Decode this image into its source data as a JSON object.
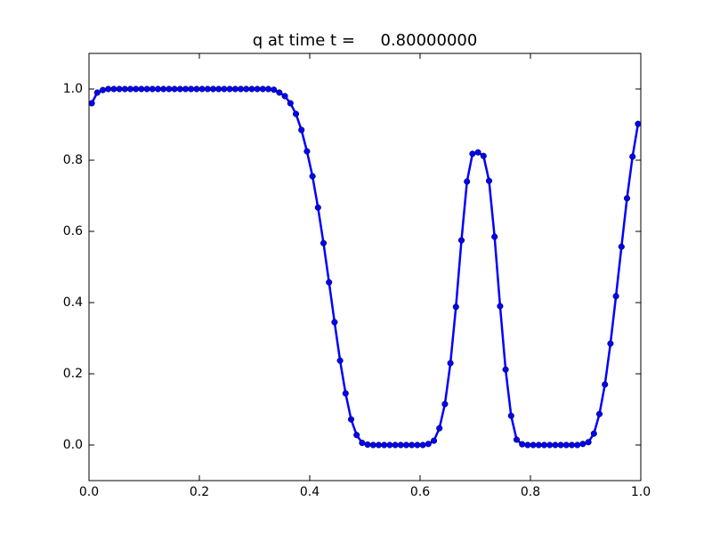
{
  "chart_data": {
    "type": "line",
    "title": "q at time t =     0.80000000",
    "x": [
      0.005,
      0.015,
      0.025,
      0.035,
      0.045,
      0.055,
      0.065,
      0.075,
      0.085,
      0.095,
      0.105,
      0.115,
      0.125,
      0.135,
      0.145,
      0.155,
      0.165,
      0.175,
      0.185,
      0.195,
      0.205,
      0.215,
      0.225,
      0.235,
      0.245,
      0.255,
      0.265,
      0.275,
      0.285,
      0.295,
      0.305,
      0.315,
      0.325,
      0.335,
      0.345,
      0.355,
      0.365,
      0.375,
      0.385,
      0.395,
      0.405,
      0.415,
      0.425,
      0.435,
      0.445,
      0.455,
      0.465,
      0.475,
      0.485,
      0.495,
      0.505,
      0.515,
      0.525,
      0.535,
      0.545,
      0.555,
      0.565,
      0.575,
      0.585,
      0.595,
      0.605,
      0.615,
      0.625,
      0.635,
      0.645,
      0.655,
      0.665,
      0.675,
      0.685,
      0.695,
      0.705,
      0.715,
      0.725,
      0.735,
      0.745,
      0.755,
      0.765,
      0.775,
      0.785,
      0.795,
      0.805,
      0.815,
      0.825,
      0.835,
      0.845,
      0.855,
      0.865,
      0.875,
      0.885,
      0.895,
      0.905,
      0.915,
      0.925,
      0.935,
      0.945,
      0.955,
      0.965,
      0.975,
      0.985,
      0.995
    ],
    "values": [
      0.96,
      0.99,
      0.997,
      1,
      1,
      1,
      1,
      1,
      1,
      1,
      1,
      1,
      1,
      1,
      1,
      1,
      1,
      1,
      1,
      1,
      1,
      1,
      1,
      1,
      1,
      1,
      1,
      1,
      1,
      1,
      1,
      1,
      1,
      0.998,
      0.99,
      0.98,
      0.96,
      0.93,
      0.885,
      0.825,
      0.755,
      0.667,
      0.567,
      0.457,
      0.345,
      0.237,
      0.145,
      0.072,
      0.028,
      0.006,
      0.001,
      0,
      0,
      0,
      0,
      0,
      0,
      0,
      0,
      0,
      0,
      0.003,
      0.012,
      0.047,
      0.115,
      0.23,
      0.388,
      0.575,
      0.74,
      0.818,
      0.822,
      0.812,
      0.742,
      0.585,
      0.39,
      0.212,
      0.082,
      0.015,
      0.002,
      0,
      0,
      0,
      0,
      0,
      0,
      0,
      0,
      0,
      0,
      0.003,
      0.008,
      0.032,
      0.087,
      0.17,
      0.285,
      0.418,
      0.557,
      0.693,
      0.81,
      0.902
    ],
    "color": "#0000ff",
    "markers": true,
    "grid": false,
    "xlim": [
      0,
      1
    ],
    "ylim": [
      -0.1,
      1.1
    ],
    "xticks": [
      {
        "value": 0,
        "label": "0.0"
      },
      {
        "value": 0.2,
        "label": "0.2"
      },
      {
        "value": 0.4,
        "label": "0.4"
      },
      {
        "value": 0.6,
        "label": "0.6"
      },
      {
        "value": 0.8,
        "label": "0.8"
      },
      {
        "value": 1,
        "label": "1.0"
      }
    ],
    "yticks": [
      {
        "value": 0,
        "label": "0.0"
      },
      {
        "value": 0.2,
        "label": "0.2"
      },
      {
        "value": 0.4,
        "label": "0.4"
      },
      {
        "value": 0.6,
        "label": "0.6"
      },
      {
        "value": 0.8,
        "label": "0.8"
      },
      {
        "value": 1,
        "label": "1.0"
      }
    ]
  }
}
